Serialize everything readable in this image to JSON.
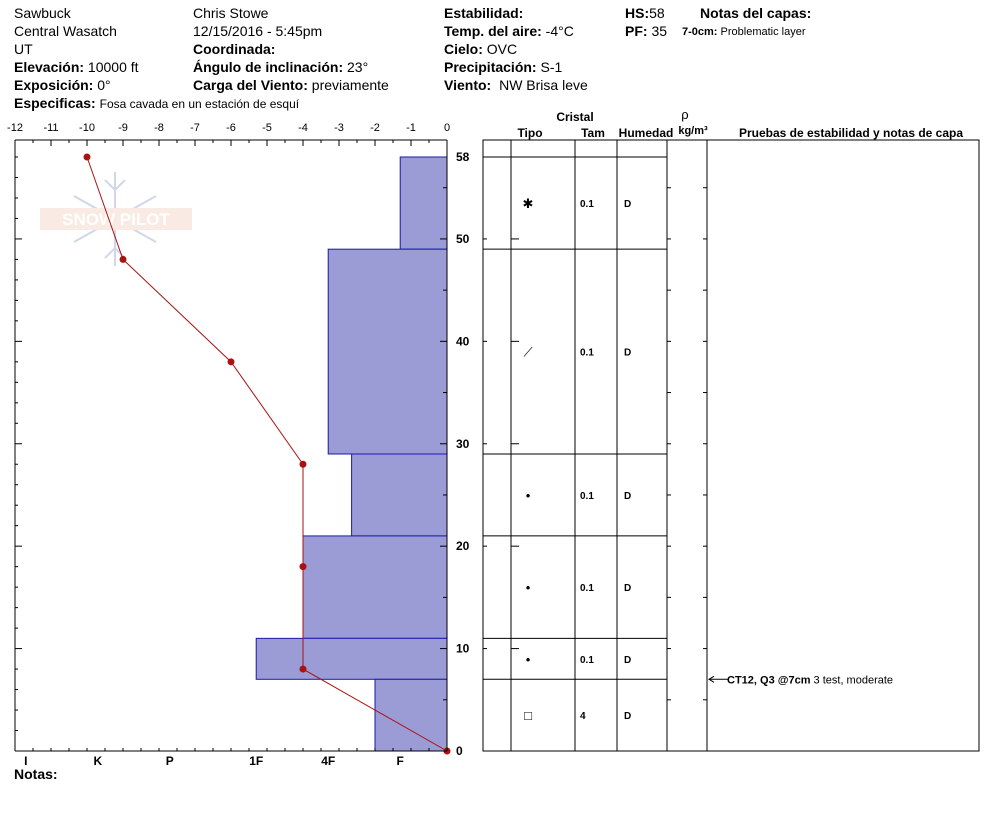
{
  "header": {
    "location": "Sawbuck",
    "range": "Central Wasatch",
    "state": "UT",
    "elevation_label": "Elevación:",
    "elevation_value": "10000 ft",
    "aspect_label": "Exposición:",
    "aspect_value": "0°",
    "specifics_label": "Especificas:",
    "specifics_value": "Fosa cavada en un estación de esquí",
    "observer": "Chris Stowe",
    "datetime": "12/15/2016 - 5:45pm",
    "coordinate_label": "Coordinada:",
    "slope_label": "Ángulo de inclinación:",
    "slope_value": "23°",
    "wind_loading_label": "Carga del Viento:",
    "wind_loading_value": "previamente",
    "stability_label": "Estabilidad:",
    "air_temp_label": "Temp. del aire:",
    "air_temp_value": "-4°C",
    "sky_label": "Cielo:",
    "sky_value": "OVC",
    "precip_label": "Precipitación:",
    "precip_value": "S-1",
    "wind_label": "Viento:",
    "wind_value": "NW Brisa leve",
    "hs_label": "HS:",
    "hs_value": "58",
    "pf_label": "PF:",
    "pf_value": "35",
    "layer_notes_label": "Notas del capas:",
    "layer_note_depth": "7-0cm:",
    "layer_note_text": "Problematic layer"
  },
  "watermark": "SNOW PILOT",
  "notes_label": "Notas:",
  "table": {
    "crystal_header": "Cristal",
    "type_header": "Tipo",
    "size_header": "Tam",
    "moisture_header": "Humedad",
    "density_symbol": "ρ",
    "density_unit": "kg/m³",
    "tests_header": "Pruebas de estabilidad y notas de capa",
    "layers": [
      {
        "top": 58,
        "bottom": 49,
        "type": "✱",
        "size": "0.1",
        "moisture": "D"
      },
      {
        "top": 49,
        "bottom": 29,
        "type": "⟋",
        "size": "0.1",
        "moisture": "D"
      },
      {
        "top": 29,
        "bottom": 21,
        "type": "•",
        "size": "0.1",
        "moisture": "D"
      },
      {
        "top": 21,
        "bottom": 11,
        "type": "•",
        "size": "0.1",
        "moisture": "D"
      },
      {
        "top": 11,
        "bottom": 7,
        "type": "•",
        "size": "0.1",
        "moisture": "D"
      },
      {
        "top": 7,
        "bottom": 0,
        "type": "□",
        "size": "4",
        "moisture": "D"
      }
    ],
    "test_note": {
      "depth": 7,
      "code": "CT12, Q3 @7cm",
      "text": "3 test, moderate"
    }
  },
  "chart_data": {
    "type": "snow-profile",
    "temperature_axis": {
      "ticks": [
        -12,
        -11,
        -10,
        -9,
        -8,
        -7,
        -6,
        -5,
        -4,
        -3,
        -2,
        -1,
        0
      ],
      "range": [
        -12,
        0
      ],
      "unit": "°C"
    },
    "depth_axis": {
      "ticks": [
        0,
        10,
        20,
        30,
        40,
        50,
        58
      ],
      "range": [
        0,
        58
      ],
      "unit": "cm"
    },
    "hardness_axis": {
      "labels": [
        "I",
        "K",
        "P",
        "1F",
        "4F",
        "F"
      ],
      "positions": [
        -11.7,
        -9.7,
        -7.7,
        -5.3,
        -3.3,
        -1.3
      ]
    },
    "hardness_layers": [
      {
        "top": 58,
        "bottom": 49,
        "hardness_temp": -1.3
      },
      {
        "top": 49,
        "bottom": 29,
        "hardness_temp": -3.3
      },
      {
        "top": 29,
        "bottom": 21,
        "hardness_temp": -2.65
      },
      {
        "top": 21,
        "bottom": 11,
        "hardness_temp": -4.0
      },
      {
        "top": 11,
        "bottom": 7,
        "hardness_temp": -5.3
      },
      {
        "top": 7,
        "bottom": 0,
        "hardness_temp": -2.0
      }
    ],
    "temperature_profile": [
      {
        "depth": 58,
        "temp": -10
      },
      {
        "depth": 48,
        "temp": -9
      },
      {
        "depth": 38,
        "temp": -6
      },
      {
        "depth": 28,
        "temp": -4
      },
      {
        "depth": 18,
        "temp": -4
      },
      {
        "depth": 8,
        "temp": -4
      },
      {
        "depth": 0,
        "temp": 0
      }
    ],
    "colors": {
      "hardness_fill": "#9b9bd6",
      "hardness_stroke": "#1a1aa8",
      "temp_line": "#aa1111"
    }
  }
}
